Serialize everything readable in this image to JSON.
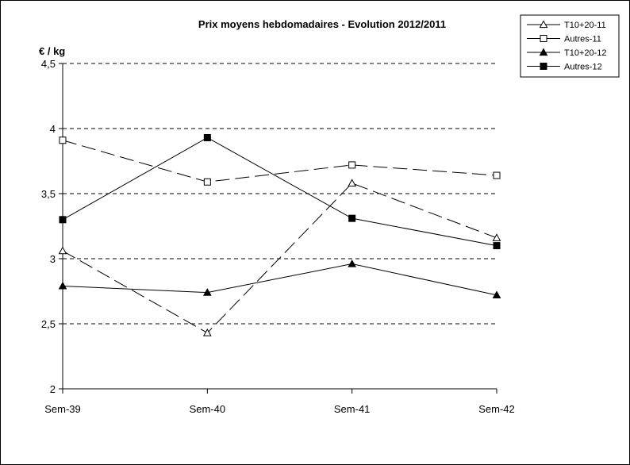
{
  "chart_data": {
    "type": "line",
    "title": "Prix moyens hebdomadaires - Evolution  2012/2011",
    "ylabel": "€ / kg",
    "xlabel": "",
    "categories": [
      "Sem-39",
      "Sem-40",
      "Sem-41",
      "Sem-42"
    ],
    "ylim": [
      2,
      4.5
    ],
    "yticks": [
      2,
      2.5,
      3,
      3.5,
      4,
      4.5
    ],
    "ytick_labels": [
      "2",
      "2,5",
      "3",
      "3,5",
      "4",
      "4,5"
    ],
    "grid": "horizontal dashed",
    "legend_position": "top-right",
    "series": [
      {
        "name": "T10+20-11",
        "values": [
          3.06,
          2.43,
          3.58,
          3.16
        ],
        "marker": "open-triangle",
        "dash": "long-dash",
        "color": "#000000"
      },
      {
        "name": "Autres-11",
        "values": [
          3.91,
          3.59,
          3.72,
          3.64
        ],
        "marker": "open-square",
        "dash": "long-dash",
        "color": "#000000"
      },
      {
        "name": "T10+20-12",
        "values": [
          2.79,
          2.74,
          2.96,
          2.72
        ],
        "marker": "filled-triangle",
        "dash": "solid",
        "color": "#000000"
      },
      {
        "name": "Autres-12",
        "values": [
          3.3,
          3.93,
          3.31,
          3.1
        ],
        "marker": "filled-square",
        "dash": "solid",
        "color": "#000000"
      }
    ]
  }
}
